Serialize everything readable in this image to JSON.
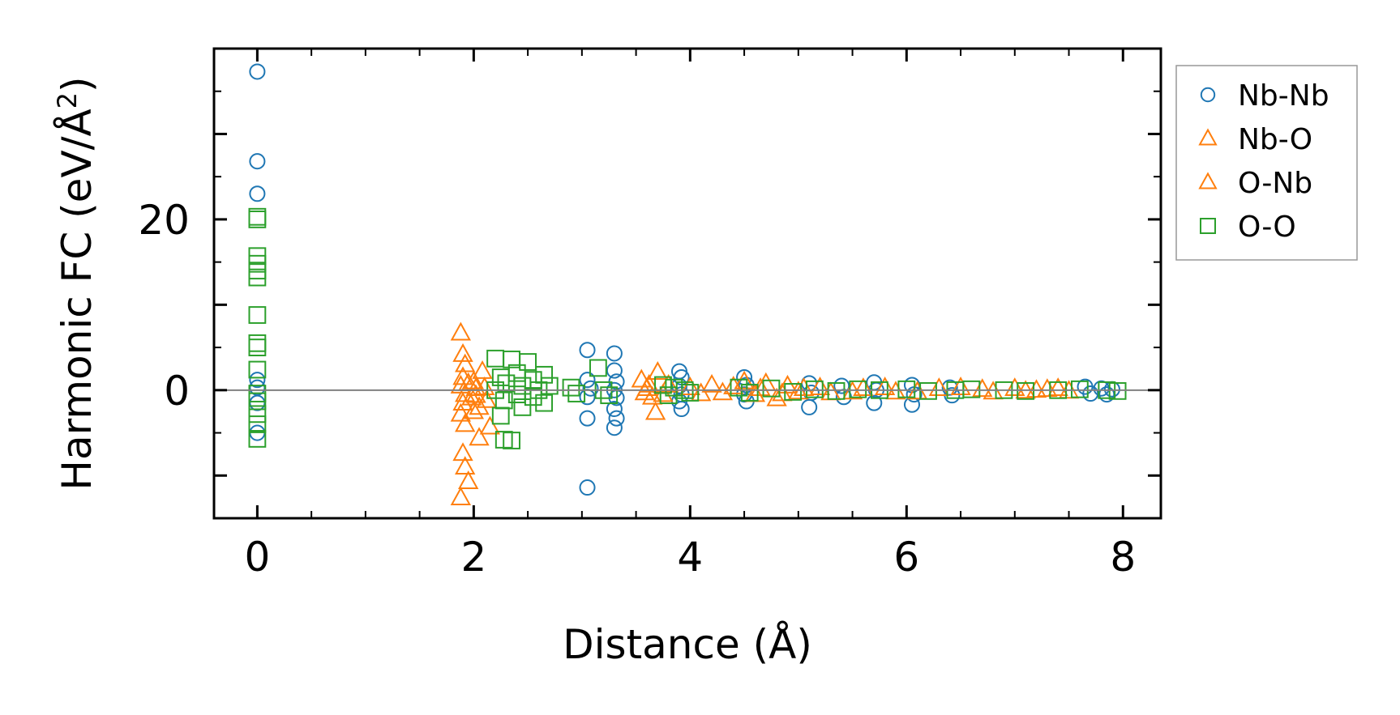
{
  "chart_data": {
    "type": "scatter",
    "xlabel": "Distance (Å)",
    "ylabel_main": "Harmonic FC (eV/Å",
    "ylabel_sup": "2",
    "ylabel_close": ")",
    "xlim": [
      -0.4,
      8.35
    ],
    "ylim": [
      -15,
      40
    ],
    "xticks": [
      0,
      2,
      4,
      6,
      8
    ],
    "xtick_labels": [
      "0",
      "2",
      "4",
      "6",
      "8"
    ],
    "yticks": [
      0,
      20
    ],
    "ytick_labels": [
      "0",
      "20"
    ],
    "x_minor_step": 0.5,
    "y_minor_step": 5,
    "zero_line": true,
    "grid": false,
    "legend_position": "outside-right",
    "series": [
      {
        "name": "Nb-Nb",
        "marker": "circle",
        "color": "#1f77b4",
        "points": [
          [
            0,
            37.3
          ],
          [
            0,
            26.8
          ],
          [
            0,
            23.0
          ],
          [
            0,
            1.2
          ],
          [
            0,
            0.3
          ],
          [
            0,
            -1.5
          ],
          [
            0,
            -5.0
          ],
          [
            3.05,
            4.7
          ],
          [
            3.05,
            1.2
          ],
          [
            3.08,
            0.2
          ],
          [
            3.05,
            -0.8
          ],
          [
            3.05,
            -3.3
          ],
          [
            3.05,
            -11.4
          ],
          [
            3.3,
            4.3
          ],
          [
            3.3,
            2.3
          ],
          [
            3.32,
            1.0
          ],
          [
            3.3,
            0.0
          ],
          [
            3.32,
            -0.9
          ],
          [
            3.3,
            -2.2
          ],
          [
            3.32,
            -3.3
          ],
          [
            3.3,
            -4.4
          ],
          [
            3.9,
            2.2
          ],
          [
            3.92,
            1.5
          ],
          [
            3.9,
            0.5
          ],
          [
            3.92,
            -0.5
          ],
          [
            3.9,
            -1.3
          ],
          [
            3.92,
            -2.2
          ],
          [
            4.5,
            1.5
          ],
          [
            4.52,
            0.6
          ],
          [
            4.5,
            -0.5
          ],
          [
            4.52,
            -1.3
          ],
          [
            5.1,
            0.8
          ],
          [
            5.12,
            -0.3
          ],
          [
            5.1,
            -2.0
          ],
          [
            5.4,
            0.5
          ],
          [
            5.42,
            -0.8
          ],
          [
            5.7,
            0.9
          ],
          [
            5.72,
            0.0
          ],
          [
            5.7,
            -1.5
          ],
          [
            6.05,
            0.6
          ],
          [
            6.07,
            -0.5
          ],
          [
            6.05,
            -1.7
          ],
          [
            6.4,
            0.3
          ],
          [
            6.42,
            -0.6
          ],
          [
            7.65,
            0.4
          ],
          [
            7.7,
            -0.4
          ],
          [
            7.8,
            0.2
          ],
          [
            7.85,
            -0.5
          ],
          [
            7.9,
            0.1
          ]
        ]
      },
      {
        "name": "Nb-O",
        "marker": "triangle",
        "color": "#ff7f0e",
        "points": [
          [
            1.88,
            6.7
          ],
          [
            1.9,
            4.2
          ],
          [
            1.92,
            3.0
          ],
          [
            1.9,
            1.5
          ],
          [
            1.88,
            0.5
          ],
          [
            1.92,
            -0.5
          ],
          [
            1.9,
            -1.5
          ],
          [
            1.88,
            -2.8
          ],
          [
            1.92,
            -4.0
          ],
          [
            1.9,
            -7.4
          ],
          [
            1.92,
            -9.0
          ],
          [
            1.95,
            -10.7
          ],
          [
            1.88,
            -12.6
          ],
          [
            2.0,
            1.0
          ],
          [
            2.02,
            -0.6
          ],
          [
            2.05,
            -2.0
          ],
          [
            2.08,
            2.2
          ],
          [
            2.05,
            -5.6
          ],
          [
            2.1,
            0.3
          ],
          [
            2.15,
            -4.3
          ],
          [
            2.12,
            -1.2
          ],
          [
            3.55,
            1.2
          ],
          [
            3.6,
            0.2
          ],
          [
            3.65,
            -0.8
          ],
          [
            3.7,
            2.1
          ],
          [
            3.68,
            -2.6
          ],
          [
            3.8,
            0.6
          ],
          [
            4.0,
            0.3
          ],
          [
            4.2,
            0.6
          ],
          [
            4.3,
            -0.3
          ],
          [
            4.5,
            1.0
          ],
          [
            4.6,
            -0.5
          ],
          [
            4.7,
            0.8
          ],
          [
            4.8,
            -1.0
          ],
          [
            4.9,
            0.5
          ],
          [
            5.0,
            -0.2
          ],
          [
            5.2,
            0.3
          ],
          [
            5.5,
            -0.2
          ],
          [
            5.8,
            0.3
          ],
          [
            6.1,
            -0.2
          ],
          [
            6.5,
            0.3
          ],
          [
            6.8,
            -0.2
          ],
          [
            7.0,
            0.2
          ],
          [
            7.2,
            0.0
          ],
          [
            7.4,
            0.2
          ]
        ]
      },
      {
        "name": "O-Nb",
        "marker": "triangle",
        "color": "#ff7f0e",
        "points": [
          [
            1.95,
            0.8
          ],
          [
            1.98,
            -0.9
          ],
          [
            2.0,
            -2.5
          ],
          [
            2.02,
            0.2
          ],
          [
            3.58,
            -0.3
          ],
          [
            3.62,
            0.6
          ],
          [
            3.75,
            -0.5
          ],
          [
            4.1,
            -0.4
          ],
          [
            4.4,
            0.4
          ],
          [
            4.65,
            0.2
          ],
          [
            4.85,
            -0.4
          ],
          [
            5.05,
            0.2
          ],
          [
            5.3,
            -0.3
          ],
          [
            5.6,
            0.2
          ],
          [
            5.9,
            -0.2
          ],
          [
            6.3,
            0.2
          ],
          [
            6.7,
            0.1
          ],
          [
            7.1,
            -0.1
          ],
          [
            7.3,
            0.1
          ],
          [
            7.5,
            -0.1
          ]
        ]
      },
      {
        "name": "O-O",
        "marker": "square",
        "color": "#2ca02c",
        "points": [
          [
            0,
            20.3
          ],
          [
            0,
            20.0
          ],
          [
            0,
            15.7
          ],
          [
            0,
            14.8
          ],
          [
            0,
            14.0
          ],
          [
            0,
            13.2
          ],
          [
            0,
            8.8
          ],
          [
            0,
            5.5
          ],
          [
            0,
            5.0
          ],
          [
            0,
            2.4
          ],
          [
            0,
            -0.4
          ],
          [
            0,
            -1.3
          ],
          [
            0,
            -2.8
          ],
          [
            0,
            -4.0
          ],
          [
            0,
            -5.7
          ],
          [
            2.2,
            3.7
          ],
          [
            2.25,
            1.5
          ],
          [
            2.2,
            0.0
          ],
          [
            2.28,
            -1.2
          ],
          [
            2.25,
            -3.0
          ],
          [
            2.28,
            -5.8
          ],
          [
            2.35,
            -5.9
          ],
          [
            2.3,
            0.8
          ],
          [
            2.35,
            3.6
          ],
          [
            2.4,
            2.0
          ],
          [
            2.4,
            -0.5
          ],
          [
            2.45,
            0.5
          ],
          [
            2.45,
            -2.0
          ],
          [
            2.5,
            3.3
          ],
          [
            2.55,
            1.2
          ],
          [
            2.55,
            -0.8
          ],
          [
            2.6,
            0.0
          ],
          [
            2.65,
            -1.5
          ],
          [
            2.7,
            0.5
          ],
          [
            2.65,
            1.8
          ],
          [
            2.9,
            0.3
          ],
          [
            2.95,
            -0.4
          ],
          [
            3.15,
            2.6
          ],
          [
            3.2,
            0.0
          ],
          [
            3.25,
            -0.6
          ],
          [
            3.75,
            0.6
          ],
          [
            3.8,
            -0.6
          ],
          [
            3.85,
            0.3
          ],
          [
            3.95,
            0.0
          ],
          [
            4.0,
            -0.3
          ],
          [
            4.45,
            0.3
          ],
          [
            4.55,
            -0.3
          ],
          [
            4.75,
            0.2
          ],
          [
            4.95,
            -0.2
          ],
          [
            5.15,
            0.1
          ],
          [
            5.35,
            -0.1
          ],
          [
            5.55,
            0.1
          ],
          [
            5.75,
            0.0
          ],
          [
            6.0,
            0.1
          ],
          [
            6.2,
            -0.1
          ],
          [
            6.45,
            0.0
          ],
          [
            6.6,
            0.1
          ],
          [
            6.9,
            0.0
          ],
          [
            7.1,
            -0.1
          ],
          [
            7.4,
            0.0
          ],
          [
            7.6,
            0.1
          ],
          [
            7.85,
            0.0
          ],
          [
            7.95,
            -0.1
          ]
        ]
      }
    ]
  }
}
